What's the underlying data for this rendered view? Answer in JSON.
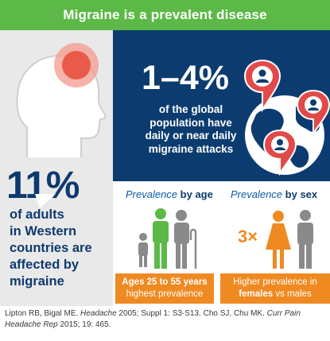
{
  "header": {
    "title": "Migraine is a prevalent disease"
  },
  "left": {
    "percent": "11%",
    "lines": [
      "of adults",
      "in Western",
      "countries are",
      "affected by",
      "migraine"
    ]
  },
  "global": {
    "range": "1–4%",
    "lines": [
      "of the global",
      "population have",
      "daily or near daily",
      "migraine attacks"
    ]
  },
  "age": {
    "title_plain": "Prevalence",
    "title_bold": "by age",
    "box_line1": "Ages 25 to 55 years",
    "box_line2": "highest prevalence"
  },
  "sex": {
    "title_plain": "Prevalence",
    "title_bold": "by sex",
    "multiplier": "3×",
    "box_line1": "Higher prevalence in",
    "box_bold": "females",
    "box_rest": " vs males"
  },
  "reference": {
    "part1": "Lipton RB, Bigal ME. ",
    "journal1": "Headache",
    "part2": " 2005; Suppl 1: S3-S13. Cho SJ, Chu MK. ",
    "journal2": "Curr Pain Headache Rep",
    "part3": " 2015; 19: 465."
  },
  "colors": {
    "green": "#5cb947",
    "navy": "#0c3c6f",
    "orange": "#ef8a22",
    "gray_panel": "#eae9ea",
    "pin_red": "#e24a4a"
  },
  "icons": [
    "head-pain-icon",
    "speech-tail-icon",
    "globe-icon",
    "location-pin-icon",
    "person-icon",
    "female-icon",
    "male-icon",
    "elderly-cane-icon"
  ]
}
